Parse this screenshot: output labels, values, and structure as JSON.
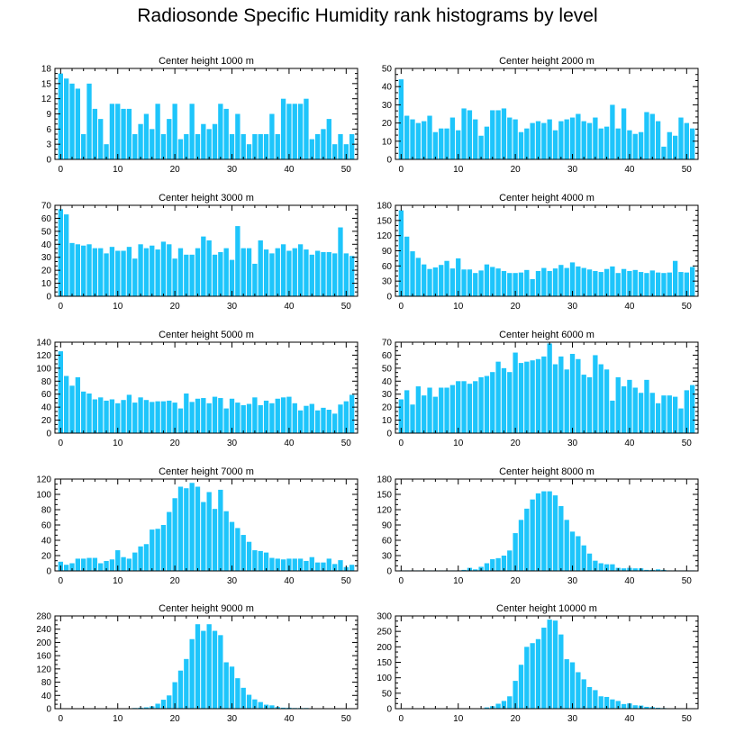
{
  "title": "Radiosonde Specific Humidity rank histograms by level",
  "bar_color": "#1ec5fb",
  "chart_data": [
    {
      "type": "bar",
      "title": "Center height 1000 m",
      "xlabel": "",
      "ylabel": "",
      "xlim": [
        -1,
        52
      ],
      "ylim": [
        0,
        18
      ],
      "yticks": [
        0,
        3,
        6,
        9,
        12,
        15,
        18
      ],
      "xticks": [
        0,
        10,
        20,
        30,
        40,
        50
      ],
      "x": [
        0,
        1,
        2,
        3,
        4,
        5,
        6,
        7,
        8,
        9,
        10,
        11,
        12,
        13,
        14,
        15,
        16,
        17,
        18,
        19,
        20,
        21,
        22,
        23,
        24,
        25,
        26,
        27,
        28,
        29,
        30,
        31,
        32,
        33,
        34,
        35,
        36,
        37,
        38,
        39,
        40,
        41,
        42,
        43,
        44,
        45,
        46,
        47,
        48,
        49,
        50,
        51
      ],
      "values": [
        17,
        16,
        15,
        14,
        5,
        15,
        10,
        8,
        3,
        11,
        11,
        10,
        10,
        5,
        7,
        9,
        6,
        11,
        5,
        8,
        11,
        4,
        5,
        11,
        5,
        7,
        6,
        7,
        11,
        10,
        5,
        9,
        5,
        3,
        5,
        5,
        5,
        9,
        5,
        12,
        11,
        11,
        11,
        12,
        4,
        5,
        6,
        8,
        3,
        5,
        3,
        5
      ]
    },
    {
      "type": "bar",
      "title": "Center height 2000 m",
      "xlabel": "",
      "ylabel": "",
      "xlim": [
        -1,
        52
      ],
      "ylim": [
        0,
        50
      ],
      "yticks": [
        0,
        10,
        20,
        30,
        40,
        50
      ],
      "xticks": [
        0,
        10,
        20,
        30,
        40,
        50
      ],
      "x": [
        0,
        1,
        2,
        3,
        4,
        5,
        6,
        7,
        8,
        9,
        10,
        11,
        12,
        13,
        14,
        15,
        16,
        17,
        18,
        19,
        20,
        21,
        22,
        23,
        24,
        25,
        26,
        27,
        28,
        29,
        30,
        31,
        32,
        33,
        34,
        35,
        36,
        37,
        38,
        39,
        40,
        41,
        42,
        43,
        44,
        45,
        46,
        47,
        48,
        49,
        50,
        51
      ],
      "values": [
        44,
        24,
        22,
        20,
        21,
        24,
        15,
        17,
        17,
        23,
        16,
        28,
        27,
        22,
        13,
        18,
        27,
        27,
        28,
        23,
        22,
        15,
        17,
        20,
        21,
        20,
        22,
        16,
        21,
        22,
        23,
        25,
        21,
        20,
        23,
        17,
        18,
        30,
        17,
        28,
        16,
        14,
        15,
        26,
        25,
        21,
        7,
        15,
        13,
        23,
        20,
        17
      ]
    },
    {
      "type": "bar",
      "title": "Center height 3000 m",
      "xlabel": "",
      "ylabel": "",
      "xlim": [
        -1,
        52
      ],
      "ylim": [
        0,
        70
      ],
      "yticks": [
        0,
        10,
        20,
        30,
        40,
        50,
        60,
        70
      ],
      "xticks": [
        0,
        10,
        20,
        30,
        40,
        50
      ],
      "x": [
        0,
        1,
        2,
        3,
        4,
        5,
        6,
        7,
        8,
        9,
        10,
        11,
        12,
        13,
        14,
        15,
        16,
        17,
        18,
        19,
        20,
        21,
        22,
        23,
        24,
        25,
        26,
        27,
        28,
        29,
        30,
        31,
        32,
        33,
        34,
        35,
        36,
        37,
        38,
        39,
        40,
        41,
        42,
        43,
        44,
        45,
        46,
        47,
        48,
        49,
        50,
        51
      ],
      "values": [
        67,
        63,
        41,
        40,
        39,
        40,
        37,
        37,
        33,
        38,
        35,
        35,
        38,
        29,
        40,
        37,
        39,
        36,
        42,
        40,
        29,
        37,
        32,
        32,
        37,
        46,
        43,
        32,
        34,
        37,
        28,
        54,
        37,
        37,
        25,
        43,
        36,
        33,
        37,
        40,
        35,
        37,
        40,
        36,
        32,
        35,
        34,
        34,
        33,
        53,
        33,
        31
      ]
    },
    {
      "type": "bar",
      "title": "Center height 4000 m",
      "xlabel": "",
      "ylabel": "",
      "xlim": [
        -1,
        52
      ],
      "ylim": [
        0,
        180
      ],
      "yticks": [
        0,
        30,
        60,
        90,
        120,
        150,
        180
      ],
      "xticks": [
        0,
        10,
        20,
        30,
        40,
        50
      ],
      "x": [
        0,
        1,
        2,
        3,
        4,
        5,
        6,
        7,
        8,
        9,
        10,
        11,
        12,
        13,
        14,
        15,
        16,
        17,
        18,
        19,
        20,
        21,
        22,
        23,
        24,
        25,
        26,
        27,
        28,
        29,
        30,
        31,
        32,
        33,
        34,
        35,
        36,
        37,
        38,
        39,
        40,
        41,
        42,
        43,
        44,
        45,
        46,
        47,
        48,
        49,
        50,
        51
      ],
      "values": [
        170,
        118,
        89,
        76,
        63,
        54,
        57,
        62,
        70,
        55,
        75,
        53,
        53,
        46,
        51,
        63,
        58,
        55,
        50,
        46,
        46,
        47,
        52,
        34,
        50,
        56,
        50,
        55,
        62,
        56,
        67,
        59,
        56,
        53,
        50,
        48,
        54,
        59,
        46,
        54,
        50,
        52,
        48,
        46,
        51,
        47,
        46,
        47,
        70,
        48,
        47,
        58
      ]
    },
    {
      "type": "bar",
      "title": "Center height 5000 m",
      "xlabel": "",
      "ylabel": "",
      "xlim": [
        -1,
        52
      ],
      "ylim": [
        0,
        140
      ],
      "yticks": [
        0,
        20,
        40,
        60,
        80,
        100,
        120,
        140
      ],
      "xticks": [
        0,
        10,
        20,
        30,
        40,
        50
      ],
      "x": [
        0,
        1,
        2,
        3,
        4,
        5,
        6,
        7,
        8,
        9,
        10,
        11,
        12,
        13,
        14,
        15,
        16,
        17,
        18,
        19,
        20,
        21,
        22,
        23,
        24,
        25,
        26,
        27,
        28,
        29,
        30,
        31,
        32,
        33,
        34,
        35,
        36,
        37,
        38,
        39,
        40,
        41,
        42,
        43,
        44,
        45,
        46,
        47,
        48,
        49,
        50,
        51
      ],
      "values": [
        126,
        88,
        73,
        86,
        64,
        61,
        52,
        55,
        50,
        52,
        46,
        51,
        59,
        47,
        55,
        51,
        48,
        49,
        49,
        50,
        47,
        38,
        61,
        48,
        53,
        54,
        46,
        56,
        54,
        38,
        53,
        47,
        43,
        45,
        55,
        43,
        50,
        46,
        53,
        55,
        56,
        46,
        35,
        42,
        45,
        35,
        39,
        36,
        30,
        44,
        49,
        59
      ]
    },
    {
      "type": "bar",
      "title": "Center height 6000 m",
      "xlabel": "",
      "ylabel": "",
      "xlim": [
        -1,
        52
      ],
      "ylim": [
        0,
        70
      ],
      "yticks": [
        0,
        10,
        20,
        30,
        40,
        50,
        60,
        70
      ],
      "xticks": [
        0,
        10,
        20,
        30,
        40,
        50
      ],
      "x": [
        0,
        1,
        2,
        3,
        4,
        5,
        6,
        7,
        8,
        9,
        10,
        11,
        12,
        13,
        14,
        15,
        16,
        17,
        18,
        19,
        20,
        21,
        22,
        23,
        24,
        25,
        26,
        27,
        28,
        29,
        30,
        31,
        32,
        33,
        34,
        35,
        36,
        37,
        38,
        39,
        40,
        41,
        42,
        43,
        44,
        45,
        46,
        47,
        48,
        49,
        50,
        51
      ],
      "values": [
        26,
        33,
        22,
        36,
        29,
        35,
        28,
        35,
        35,
        37,
        40,
        40,
        38,
        40,
        43,
        44,
        47,
        55,
        50,
        47,
        62,
        54,
        55,
        56,
        57,
        59,
        69,
        53,
        59,
        49,
        61,
        57,
        45,
        43,
        60,
        53,
        49,
        25,
        43,
        36,
        41,
        35,
        31,
        41,
        31,
        23,
        29,
        29,
        28,
        19,
        33,
        37
      ]
    },
    {
      "type": "bar",
      "title": "Center height 7000 m",
      "xlabel": "",
      "ylabel": "",
      "xlim": [
        -1,
        52
      ],
      "ylim": [
        0,
        120
      ],
      "yticks": [
        0,
        20,
        40,
        60,
        80,
        100,
        120
      ],
      "xticks": [
        0,
        10,
        20,
        30,
        40,
        50
      ],
      "x": [
        0,
        1,
        2,
        3,
        4,
        5,
        6,
        7,
        8,
        9,
        10,
        11,
        12,
        13,
        14,
        15,
        16,
        17,
        18,
        19,
        20,
        21,
        22,
        23,
        24,
        25,
        26,
        27,
        28,
        29,
        30,
        31,
        32,
        33,
        34,
        35,
        36,
        37,
        38,
        39,
        40,
        41,
        42,
        43,
        44,
        45,
        46,
        47,
        48,
        49,
        50,
        51
      ],
      "values": [
        12,
        8,
        10,
        16,
        16,
        17,
        17,
        10,
        13,
        15,
        27,
        18,
        16,
        24,
        32,
        35,
        54,
        55,
        60,
        77,
        95,
        110,
        108,
        115,
        110,
        90,
        103,
        81,
        106,
        78,
        64,
        56,
        47,
        38,
        27,
        26,
        24,
        17,
        16,
        15,
        16,
        16,
        16,
        13,
        18,
        11,
        11,
        16,
        9,
        14,
        5,
        8
      ]
    },
    {
      "type": "bar",
      "title": "Center height 8000 m",
      "xlabel": "",
      "ylabel": "",
      "xlim": [
        -1,
        52
      ],
      "ylim": [
        0,
        180
      ],
      "yticks": [
        0,
        30,
        60,
        90,
        120,
        150,
        180
      ],
      "xticks": [
        0,
        10,
        20,
        30,
        40,
        50
      ],
      "x": [
        0,
        1,
        2,
        3,
        4,
        5,
        6,
        7,
        8,
        9,
        10,
        11,
        12,
        13,
        14,
        15,
        16,
        17,
        18,
        19,
        20,
        21,
        22,
        23,
        24,
        25,
        26,
        27,
        28,
        29,
        30,
        31,
        32,
        33,
        34,
        35,
        36,
        37,
        38,
        39,
        40,
        41,
        42,
        43,
        44,
        45,
        46,
        47,
        48,
        49,
        50,
        51
      ],
      "values": [
        1,
        1,
        1,
        1,
        1,
        1,
        1,
        1,
        1,
        1,
        1,
        2,
        6,
        3,
        8,
        15,
        23,
        25,
        30,
        40,
        74,
        100,
        122,
        140,
        152,
        156,
        156,
        148,
        127,
        100,
        77,
        68,
        50,
        34,
        20,
        15,
        13,
        13,
        6,
        5,
        6,
        5,
        5,
        2,
        2,
        3,
        2,
        1,
        1,
        1,
        1,
        1
      ]
    },
    {
      "type": "bar",
      "title": "Center height 9000 m",
      "xlabel": "",
      "ylabel": "",
      "xlim": [
        -1,
        52
      ],
      "ylim": [
        0,
        280
      ],
      "yticks": [
        0,
        40,
        80,
        120,
        160,
        200,
        240,
        280
      ],
      "xticks": [
        0,
        10,
        20,
        30,
        40,
        50
      ],
      "x": [
        0,
        1,
        2,
        3,
        4,
        5,
        6,
        7,
        8,
        9,
        10,
        11,
        12,
        13,
        14,
        15,
        16,
        17,
        18,
        19,
        20,
        21,
        22,
        23,
        24,
        25,
        26,
        27,
        28,
        29,
        30,
        31,
        32,
        33,
        34,
        35,
        36,
        37,
        38,
        39,
        40,
        41,
        42,
        43,
        44,
        45,
        46,
        47,
        48,
        49,
        50,
        51
      ],
      "values": [
        0,
        0,
        0,
        0,
        0,
        0,
        0,
        0,
        0,
        0,
        1,
        1,
        1,
        2,
        3,
        4,
        7,
        15,
        27,
        40,
        80,
        115,
        150,
        210,
        255,
        235,
        255,
        235,
        222,
        140,
        127,
        92,
        63,
        42,
        28,
        20,
        12,
        10,
        5,
        3,
        3,
        2,
        2,
        2,
        1,
        1,
        1,
        1,
        1,
        0,
        0,
        0
      ]
    },
    {
      "type": "bar",
      "title": "Center height 10000 m",
      "xlabel": "",
      "ylabel": "",
      "xlim": [
        -1,
        52
      ],
      "ylim": [
        0,
        300
      ],
      "yticks": [
        0,
        50,
        100,
        150,
        200,
        250,
        300
      ],
      "xticks": [
        0,
        10,
        20,
        30,
        40,
        50
      ],
      "x": [
        0,
        1,
        2,
        3,
        4,
        5,
        6,
        7,
        8,
        9,
        10,
        11,
        12,
        13,
        14,
        15,
        16,
        17,
        18,
        19,
        20,
        21,
        22,
        23,
        24,
        25,
        26,
        27,
        28,
        29,
        30,
        31,
        32,
        33,
        34,
        35,
        36,
        37,
        38,
        39,
        40,
        41,
        42,
        43,
        44,
        45,
        46,
        47,
        48,
        49,
        50,
        51
      ],
      "values": [
        0,
        0,
        0,
        0,
        0,
        0,
        0,
        0,
        0,
        0,
        0,
        0,
        0,
        0,
        1,
        4,
        8,
        16,
        25,
        40,
        90,
        142,
        200,
        212,
        225,
        262,
        288,
        285,
        240,
        160,
        150,
        118,
        95,
        70,
        60,
        40,
        38,
        30,
        25,
        15,
        17,
        11,
        10,
        6,
        5,
        3,
        2,
        1,
        1,
        1,
        1,
        1
      ]
    }
  ]
}
